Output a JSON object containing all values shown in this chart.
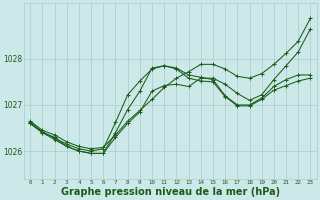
{
  "bg_color": "#cce8e8",
  "grid_color": "#aacccc",
  "line_color": "#1a5c1a",
  "xlabel": "Graphe pression niveau de la mer (hPa)",
  "xlabel_fontsize": 7.0,
  "ylabel_ticks": [
    1026,
    1027,
    1028
  ],
  "xlim": [
    -0.5,
    23.5
  ],
  "ylim": [
    1025.4,
    1029.2
  ],
  "xticks": [
    0,
    1,
    2,
    3,
    4,
    5,
    6,
    7,
    8,
    9,
    10,
    11,
    12,
    13,
    14,
    15,
    16,
    17,
    18,
    19,
    20,
    21,
    22,
    23
  ],
  "series": [
    [
      1026.6,
      1026.4,
      1026.3,
      1026.1,
      1026.0,
      1025.95,
      1025.95,
      1026.4,
      1026.9,
      1027.3,
      1027.8,
      1027.85,
      1027.8,
      1027.65,
      1027.6,
      1027.55,
      1027.2,
      1027.0,
      1027.0,
      1027.15,
      1027.4,
      1027.55,
      1027.65,
      1027.65
    ],
    [
      1026.6,
      1026.4,
      1026.25,
      1026.1,
      1026.0,
      1025.95,
      1025.95,
      1026.3,
      1026.6,
      1026.85,
      1027.3,
      1027.42,
      1027.45,
      1027.4,
      1027.58,
      1027.58,
      1027.45,
      1027.25,
      1027.1,
      1027.22,
      1027.55,
      1027.85,
      1028.15,
      1028.65
    ],
    [
      1026.65,
      1026.45,
      1026.35,
      1026.2,
      1026.1,
      1026.05,
      1026.08,
      1026.35,
      1026.65,
      1026.88,
      1027.12,
      1027.38,
      1027.58,
      1027.72,
      1027.88,
      1027.88,
      1027.78,
      1027.62,
      1027.58,
      1027.68,
      1027.88,
      1028.12,
      1028.38,
      1028.88
    ],
    [
      1026.62,
      1026.42,
      1026.28,
      1026.15,
      1026.05,
      1026.0,
      1026.05,
      1026.62,
      1027.22,
      1027.52,
      1027.78,
      1027.85,
      1027.78,
      1027.58,
      1027.52,
      1027.5,
      1027.18,
      1026.98,
      1026.98,
      1027.12,
      1027.32,
      1027.42,
      1027.52,
      1027.58
    ]
  ]
}
